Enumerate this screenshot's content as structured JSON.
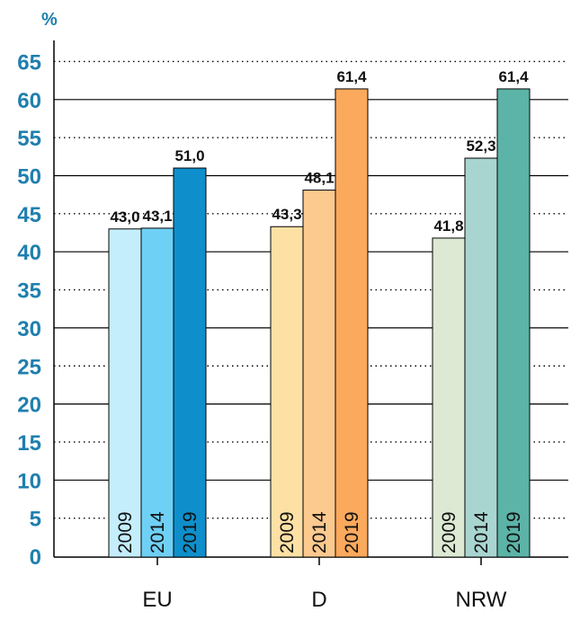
{
  "chart_data": {
    "type": "bar",
    "unit_label": "%",
    "ylim": [
      0,
      65
    ],
    "yticks": [
      "0",
      "5",
      "10",
      "15",
      "20",
      "25",
      "30",
      "35",
      "40",
      "45",
      "50",
      "55",
      "60",
      "65"
    ],
    "grid": "solid lines at multiples of 10, dotted lines at odd multiples of 5",
    "categories": [
      "EU",
      "D",
      "NRW"
    ],
    "series_years": [
      "2009",
      "2014",
      "2019"
    ],
    "groups": [
      {
        "category": "EU",
        "values": [
          43.0,
          43.1,
          51.0
        ],
        "labels": [
          "43,0",
          "43,1",
          "51,0"
        ],
        "colors": [
          "#c4eefc",
          "#6fd0f5",
          "#0e8fcb"
        ]
      },
      {
        "category": "D",
        "values": [
          43.3,
          48.1,
          61.4
        ],
        "labels": [
          "43,3",
          "48,1",
          "61,4"
        ],
        "colors": [
          "#fde0a4",
          "#fcc98e",
          "#fba95c"
        ]
      },
      {
        "category": "NRW",
        "values": [
          41.8,
          52.3,
          61.4
        ],
        "labels": [
          "41,8",
          "52,3",
          "61,4"
        ],
        "colors": [
          "#dde9d3",
          "#a9d5d0",
          "#5cb3a7"
        ]
      }
    ]
  }
}
